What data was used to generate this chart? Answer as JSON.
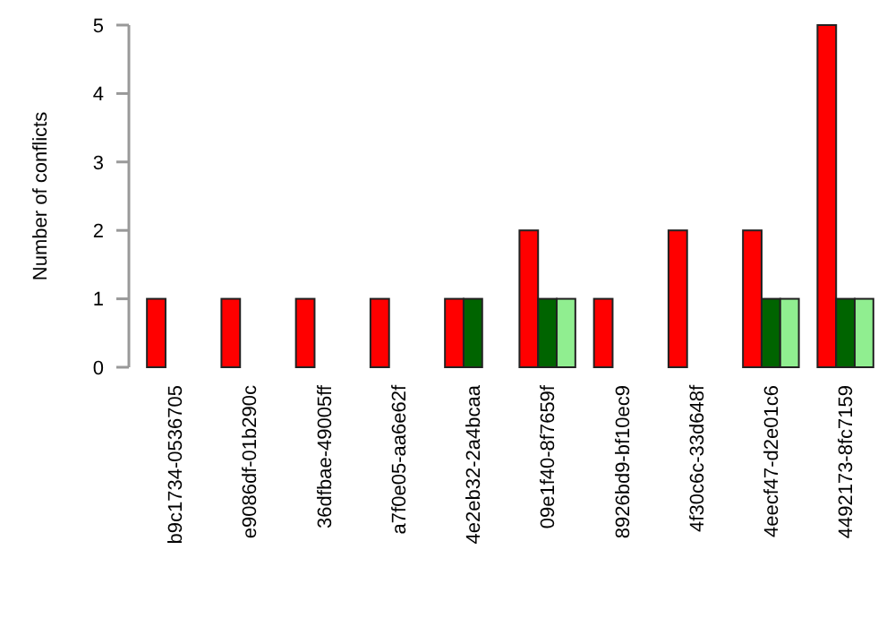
{
  "chart_data": {
    "type": "bar",
    "ylabel": "Number of conflicts",
    "categories": [
      "b9c1734-0536705",
      "e9086df-01b290c",
      "36dfbae-49005ff",
      "a7f0e05-aa6e62f",
      "4e2eb32-2a4bcaa",
      "09e1f40-8f7659f",
      "8926bd9-bf10ec9",
      "4f30c6c-33d648f",
      "4eecf47-d2e01c6",
      "4492173-8fc7159"
    ],
    "series": [
      {
        "color": "#ff0000",
        "values": [
          1,
          1,
          1,
          1,
          1,
          2,
          1,
          2,
          2,
          5
        ]
      },
      {
        "color": "#006400",
        "values": [
          0,
          0,
          0,
          0,
          1,
          1,
          0,
          0,
          1,
          1
        ]
      },
      {
        "color": "#90ee90",
        "values": [
          0,
          0,
          0,
          0,
          0,
          1,
          0,
          0,
          1,
          1
        ]
      }
    ],
    "ylim": [
      0,
      5
    ],
    "yticks": [
      0,
      1,
      2,
      3,
      4,
      5
    ],
    "grid": false
  }
}
